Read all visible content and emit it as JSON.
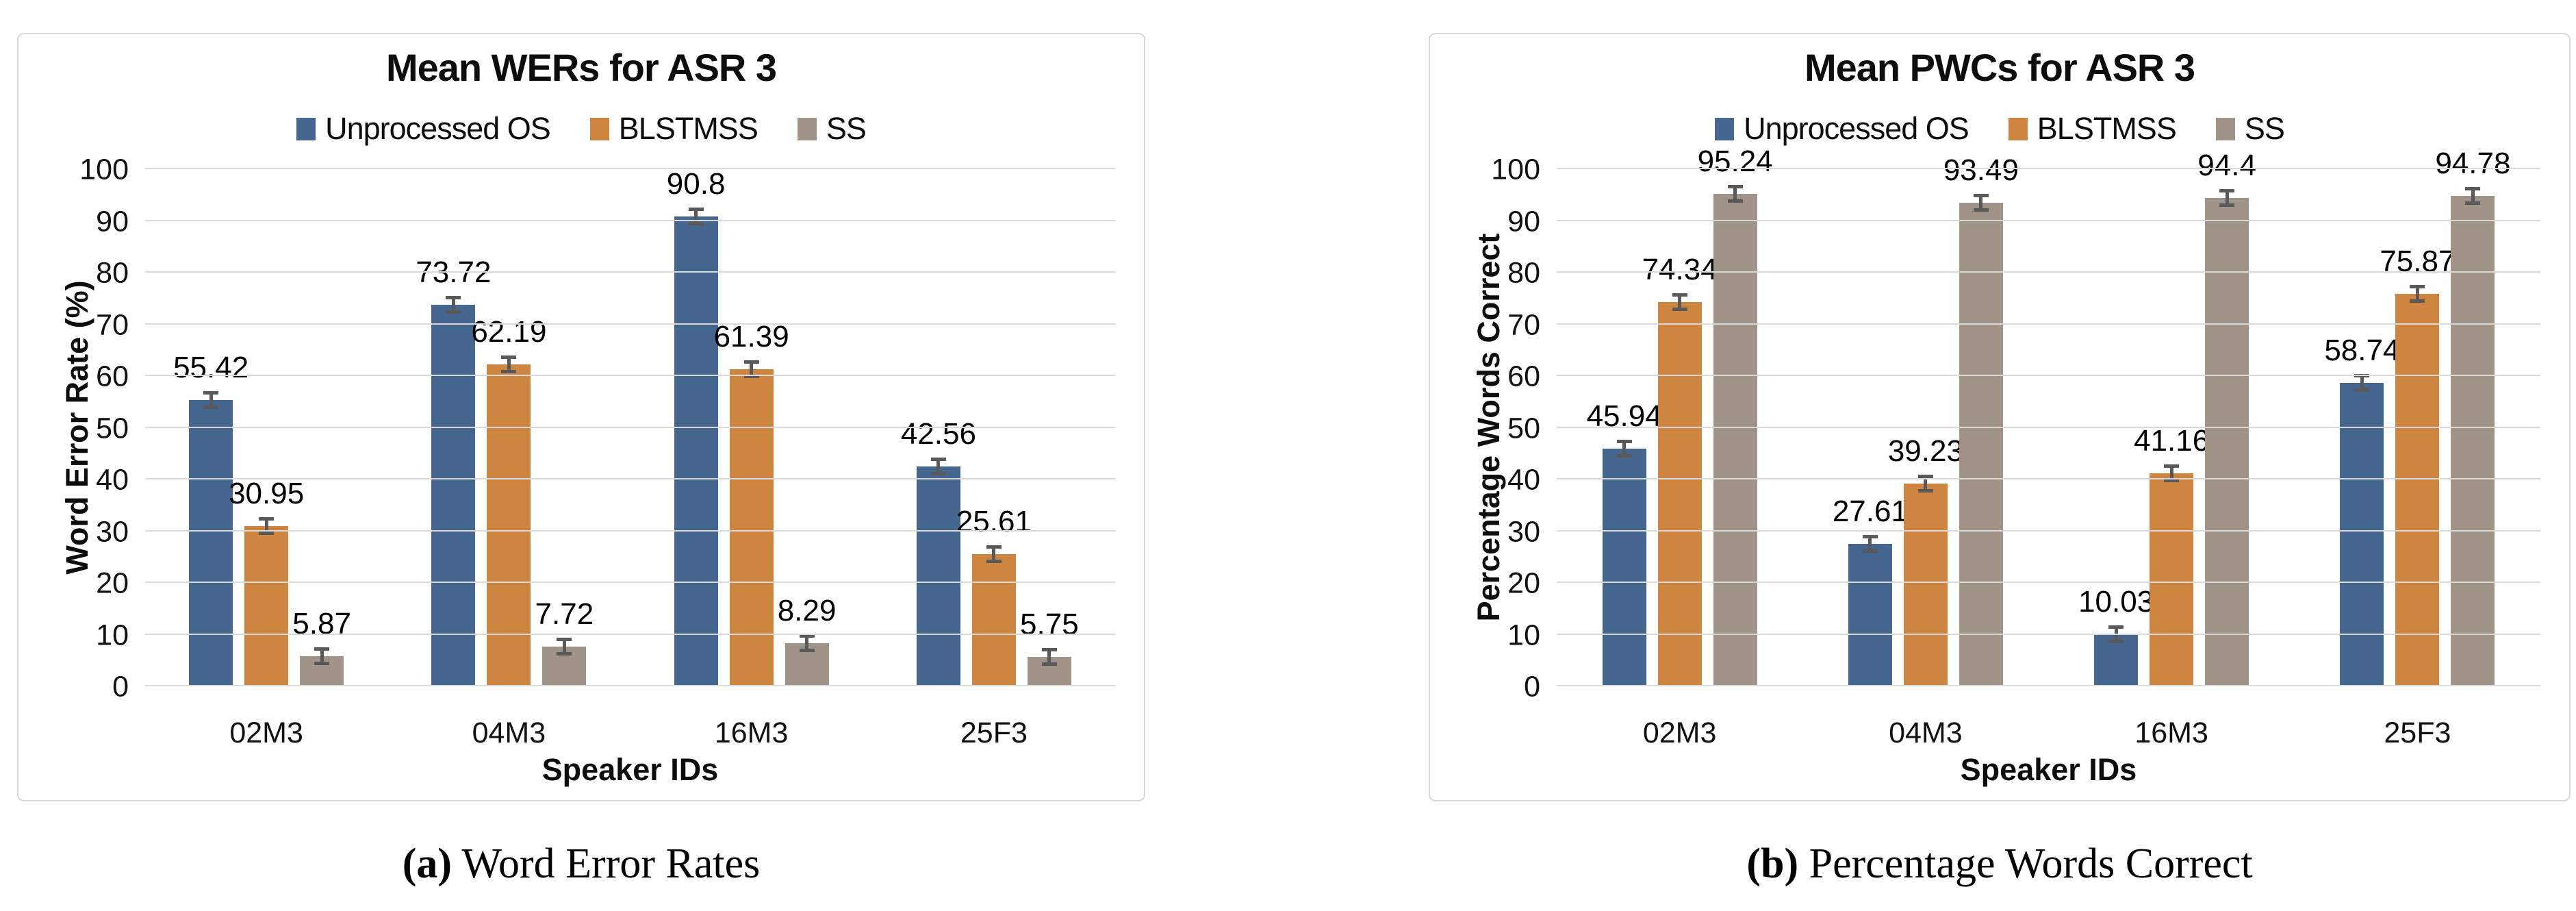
{
  "colors": {
    "blue": "#44668F",
    "orange": "#CE8540",
    "gray": "#A09488",
    "error_bar": "#595959",
    "gridline": "#D9D9D9",
    "panel_border": "#D8D8D8",
    "text": "#111111"
  },
  "chart_data": [
    {
      "type": "bar",
      "title": "Mean WERs for ASR 3",
      "xlabel": "Speaker IDs",
      "ylabel": "Word Error Rate (%)",
      "ylim": [
        0,
        100
      ],
      "yticks": [
        0,
        10,
        20,
        30,
        40,
        50,
        60,
        70,
        80,
        90,
        100
      ],
      "grid": true,
      "legend_position": "top",
      "error_bars": true,
      "categories": [
        "02M3",
        "04M3",
        "16M3",
        "25F3"
      ],
      "series": [
        {
          "name": "Unprocessed OS",
          "color_key": "blue",
          "values": [
            55.42,
            73.72,
            90.8,
            42.56
          ]
        },
        {
          "name": "BLSTMSS",
          "color_key": "orange",
          "values": [
            30.95,
            62.19,
            61.39,
            25.61
          ]
        },
        {
          "name": "SS",
          "color_key": "gray",
          "values": [
            5.87,
            7.72,
            8.29,
            5.75
          ]
        }
      ],
      "caption": {
        "letter": "a",
        "text": "Word Error Rates"
      }
    },
    {
      "type": "bar",
      "title": "Mean PWCs for ASR 3",
      "xlabel": "Speaker IDs",
      "ylabel": "Percentage Words Correct",
      "ylim": [
        0,
        100
      ],
      "yticks": [
        0,
        10,
        20,
        30,
        40,
        50,
        60,
        70,
        80,
        90,
        100
      ],
      "grid": true,
      "legend_position": "top",
      "error_bars": true,
      "categories": [
        "02M3",
        "04M3",
        "16M3",
        "25F3"
      ],
      "series": [
        {
          "name": "Unprocessed OS",
          "color_key": "blue",
          "values": [
            45.94,
            27.61,
            10.03,
            58.74
          ]
        },
        {
          "name": "BLSTMSS",
          "color_key": "orange",
          "values": [
            74.34,
            39.23,
            41.16,
            75.87
          ]
        },
        {
          "name": "SS",
          "color_key": "gray",
          "values": [
            95.24,
            93.49,
            94.4,
            94.78
          ]
        }
      ],
      "caption": {
        "letter": "b",
        "text": "Percentage Words Correct"
      }
    }
  ]
}
